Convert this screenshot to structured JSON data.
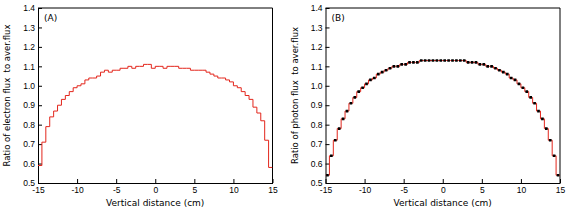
{
  "chart_data": [
    {
      "type": "histogram",
      "title": "(A)",
      "x_label": "Vertical distance (cm)",
      "y_label": "Ratio of electron flux  to aver.flux",
      "bins": [
        -15,
        -14.5,
        -14,
        -13.5,
        -13,
        -12.5,
        -12,
        -11.5,
        -11,
        -10.5,
        -10,
        -9.5,
        -9,
        -8.5,
        -8,
        -7.5,
        -7,
        -6.5,
        -6,
        -5.5,
        -5,
        -4.5,
        -4,
        -3.5,
        -3,
        -2.5,
        -2,
        -1.5,
        -1,
        -0.5,
        0,
        0.5,
        1,
        1.5,
        2,
        2.5,
        3,
        3.5,
        4,
        4.5,
        5,
        5.5,
        6,
        6.5,
        7,
        7.5,
        8,
        8.5,
        9,
        9.5,
        10,
        10.5,
        11,
        11.5,
        12,
        12.5,
        13,
        13.5,
        14,
        14.5,
        15
      ],
      "values": [
        0.59,
        0.71,
        0.79,
        0.84,
        0.87,
        0.9,
        0.93,
        0.95,
        0.97,
        0.99,
        1.0,
        1.01,
        1.03,
        1.04,
        1.04,
        1.05,
        1.07,
        1.08,
        1.07,
        1.08,
        1.08,
        1.09,
        1.09,
        1.1,
        1.09,
        1.1,
        1.1,
        1.11,
        1.11,
        1.09,
        1.1,
        1.1,
        1.09,
        1.1,
        1.1,
        1.1,
        1.09,
        1.09,
        1.09,
        1.08,
        1.08,
        1.08,
        1.08,
        1.07,
        1.06,
        1.05,
        1.04,
        1.04,
        1.03,
        1.02,
        1.0,
        0.99,
        0.97,
        0.95,
        0.93,
        0.89,
        0.86,
        0.82,
        0.72,
        0.58
      ],
      "color": "#e3261c",
      "xlim": [
        -15,
        15
      ],
      "xticks": [
        -15,
        -10,
        -5,
        0,
        5,
        10,
        15
      ],
      "ylim": [
        0.5,
        1.4
      ],
      "yticks": [
        0.5,
        0.6,
        0.7,
        0.8,
        0.9,
        {
          "value": 1,
          "label": "1.0"
        },
        1.1,
        1.2,
        1.3,
        1.4
      ]
    },
    {
      "type": "histogram",
      "title": "(B)",
      "x_label": "Vertical distance (cm)",
      "y_label": "Ratio of photon flux  to aver.flux",
      "bins": [
        -15,
        -14.5,
        -14,
        -13.5,
        -13,
        -12.5,
        -12,
        -11.5,
        -11,
        -10.5,
        -10,
        -9.5,
        -9,
        -8.5,
        -8,
        -7.5,
        -7,
        -6.5,
        -6,
        -5.5,
        -5,
        -4.5,
        -4,
        -3.5,
        -3,
        -2.5,
        -2,
        -1.5,
        -1,
        -0.5,
        0,
        0.5,
        1,
        1.5,
        2,
        2.5,
        3,
        3.5,
        4,
        4.5,
        5,
        5.5,
        6,
        6.5,
        7,
        7.5,
        8,
        8.5,
        9,
        9.5,
        10,
        10.5,
        11,
        11.5,
        12,
        12.5,
        13,
        13.5,
        14,
        14.5,
        15
      ],
      "values": [
        0.54,
        0.64,
        0.72,
        0.78,
        0.83,
        0.87,
        0.91,
        0.94,
        0.97,
        0.99,
        1.01,
        1.03,
        1.04,
        1.06,
        1.07,
        1.08,
        1.09,
        1.1,
        1.1,
        1.11,
        1.11,
        1.12,
        1.12,
        1.12,
        1.13,
        1.13,
        1.13,
        1.13,
        1.13,
        1.13,
        1.13,
        1.13,
        1.13,
        1.13,
        1.13,
        1.13,
        1.12,
        1.12,
        1.12,
        1.11,
        1.11,
        1.1,
        1.1,
        1.09,
        1.08,
        1.07,
        1.06,
        1.04,
        1.03,
        1.01,
        0.99,
        0.97,
        0.94,
        0.91,
        0.87,
        0.83,
        0.78,
        0.72,
        0.64,
        0.54
      ],
      "color": "#e3261c",
      "marker": "square",
      "xlim": [
        -15,
        15
      ],
      "xticks": [
        -15,
        -10,
        -5,
        0,
        5,
        10,
        15
      ],
      "ylim": [
        0.5,
        1.4
      ],
      "yticks": [
        0.5,
        0.6,
        0.7,
        0.8,
        0.9,
        {
          "value": 1,
          "label": "1.0"
        },
        1.1,
        1.2,
        1.3,
        1.4
      ]
    }
  ]
}
